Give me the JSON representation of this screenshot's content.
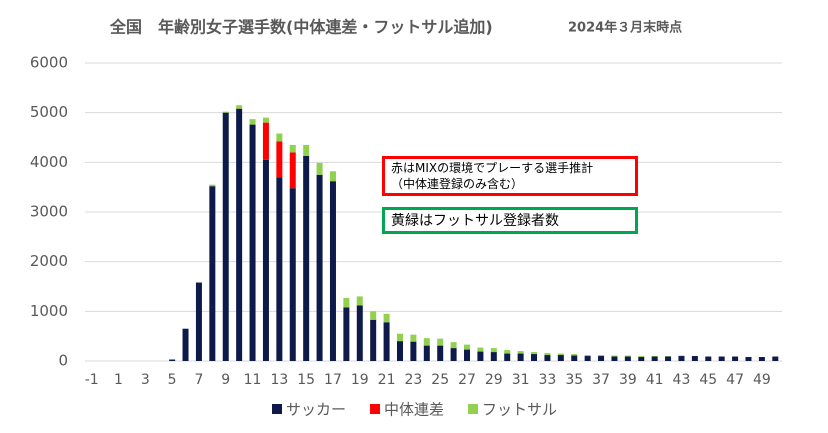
{
  "chart_data": {
    "type": "stacked_bar",
    "title": "全国　年齢別女子選手数(中体連差・フットサル追加)",
    "subtitle": "2024年３月末時点",
    "categories": [
      -1,
      null,
      1,
      null,
      3,
      null,
      5,
      null,
      7,
      null,
      9,
      null,
      11,
      null,
      13,
      null,
      15,
      null,
      17,
      null,
      19,
      null,
      21,
      null,
      23,
      null,
      25,
      null,
      27,
      null,
      29,
      null,
      31,
      null,
      33,
      null,
      35,
      null,
      37,
      null,
      39,
      null,
      41,
      null,
      43,
      null,
      45,
      null,
      47,
      null,
      49,
      null
    ],
    "series": [
      {
        "name": "サッカー",
        "color": "#0d1a4a",
        "values": [
          0,
          0,
          0,
          0,
          0,
          0,
          30,
          650,
          1580,
          3520,
          5000,
          5080,
          4760,
          4050,
          3700,
          3480,
          4130,
          3750,
          3620,
          1080,
          1120,
          830,
          780,
          400,
          390,
          310,
          310,
          260,
          230,
          190,
          180,
          150,
          150,
          140,
          120,
          120,
          110,
          100,
          100,
          90,
          90,
          80,
          90,
          90,
          100,
          100,
          90,
          90,
          90,
          80,
          80,
          90
        ]
      },
      {
        "name": "中体連差",
        "color": "#ff0000",
        "values": [
          0,
          0,
          0,
          0,
          0,
          0,
          0,
          0,
          0,
          0,
          0,
          0,
          0,
          750,
          720,
          720,
          0,
          0,
          0,
          0,
          0,
          0,
          0,
          0,
          0,
          0,
          0,
          0,
          0,
          0,
          0,
          0,
          0,
          0,
          0,
          0,
          0,
          0,
          0,
          0,
          0,
          0,
          0,
          0,
          0,
          0,
          0,
          0,
          0,
          0,
          0,
          0
        ]
      },
      {
        "name": "フットサル",
        "color": "#92d050",
        "values": [
          0,
          0,
          0,
          0,
          0,
          0,
          0,
          0,
          0,
          30,
          20,
          70,
          110,
          100,
          160,
          150,
          220,
          240,
          200,
          190,
          180,
          170,
          170,
          150,
          140,
          150,
          140,
          120,
          100,
          80,
          80,
          70,
          50,
          40,
          40,
          30,
          30,
          20,
          20,
          20,
          20,
          20,
          10,
          10,
          10,
          0,
          0,
          0,
          0,
          0,
          0,
          0
        ]
      }
    ],
    "ylim": [
      0,
      6000
    ],
    "yticks": [
      0,
      1000,
      2000,
      3000,
      4000,
      5000,
      6000
    ],
    "grid": true,
    "annotations": [
      {
        "lines": [
          "赤はMIXの環境でプレーする選手推計",
          "（中体連登録のみ含む）"
        ],
        "color": "#ff0000"
      },
      {
        "lines": [
          "黄緑はフットサル登録者数"
        ],
        "color": "#00a650"
      }
    ]
  }
}
